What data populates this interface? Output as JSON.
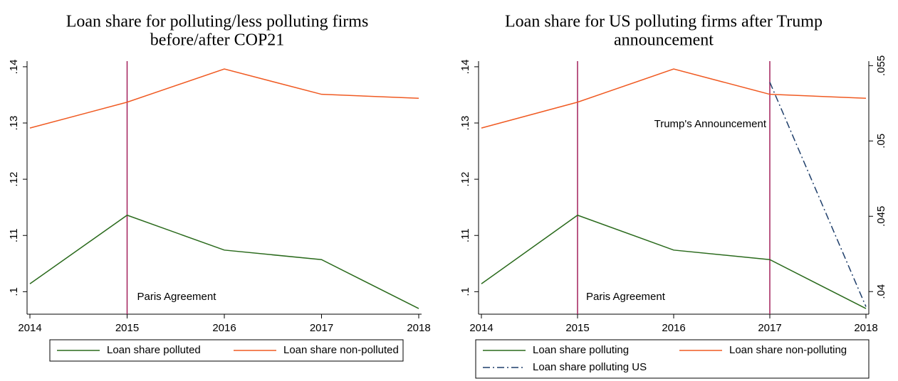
{
  "chart_data": [
    {
      "type": "line",
      "title": [
        "Loan share for polluting/less polluting firms",
        "before/after COP21"
      ],
      "x": [
        2014,
        2015,
        2016,
        2017,
        2018
      ],
      "xlim": [
        2014,
        2018
      ],
      "xticks": [
        2014,
        2015,
        2016,
        2017,
        2018
      ],
      "ylim": [
        0.096,
        0.141
      ],
      "yticks": [
        {
          "value": 0.1,
          "label": ".1"
        },
        {
          "value": 0.11,
          "label": ".11"
        },
        {
          "value": 0.12,
          "label": ".12"
        },
        {
          "value": 0.13,
          "label": ".13"
        },
        {
          "value": 0.14,
          "label": ".14"
        }
      ],
      "series": [
        {
          "name": "Loan share polluted",
          "color": "#2a6a1c",
          "values": [
            0.1014,
            0.1136,
            0.1074,
            0.1057,
            0.097
          ]
        },
        {
          "name": "Loan share non-polluted",
          "color": "#f05a22",
          "values": [
            0.1291,
            0.1337,
            0.1396,
            0.1351,
            0.1344
          ]
        }
      ],
      "annotations": [
        {
          "text": "Paris Agreement",
          "x": 2015,
          "color": "#a3205c"
        }
      ]
    },
    {
      "type": "line",
      "title": [
        "Loan share for US polluting firms after Trump",
        "announcement"
      ],
      "x": [
        2014,
        2015,
        2016,
        2017,
        2018
      ],
      "xlim": [
        2014,
        2018
      ],
      "xticks": [
        2014,
        2015,
        2016,
        2017,
        2018
      ],
      "ylim": [
        0.096,
        0.141
      ],
      "yticks": [
        {
          "value": 0.1,
          "label": ".1"
        },
        {
          "value": 0.11,
          "label": ".11"
        },
        {
          "value": 0.12,
          "label": ".12"
        },
        {
          "value": 0.13,
          "label": ".13"
        },
        {
          "value": 0.14,
          "label": ".14"
        }
      ],
      "y2lim": [
        0.0385,
        0.0553
      ],
      "y2ticks": [
        {
          "value": 0.04,
          "label": ".04"
        },
        {
          "value": 0.045,
          "label": ".045"
        },
        {
          "value": 0.05,
          "label": ".05"
        },
        {
          "value": 0.055,
          "label": ".055"
        }
      ],
      "series": [
        {
          "name": "Loan share polluting",
          "color": "#2a6a1c",
          "values": [
            0.1014,
            0.1136,
            0.1074,
            0.1057,
            0.097
          ]
        },
        {
          "name": "Loan share non-polluting",
          "color": "#f05a22",
          "values": [
            0.1291,
            0.1337,
            0.1396,
            0.1351,
            0.1344
          ]
        },
        {
          "name": "Loan share polluting US",
          "color": "#1f3f6b",
          "dash": "dashdot",
          "axis": "y2",
          "values": [
            null,
            null,
            null,
            0.0539,
            0.039
          ]
        }
      ],
      "annotations": [
        {
          "text": "Paris Agreement",
          "x": 2015,
          "color": "#a3205c"
        },
        {
          "text": "Trump's Announcement",
          "x": 2017,
          "color": "#a3205c"
        }
      ]
    }
  ]
}
